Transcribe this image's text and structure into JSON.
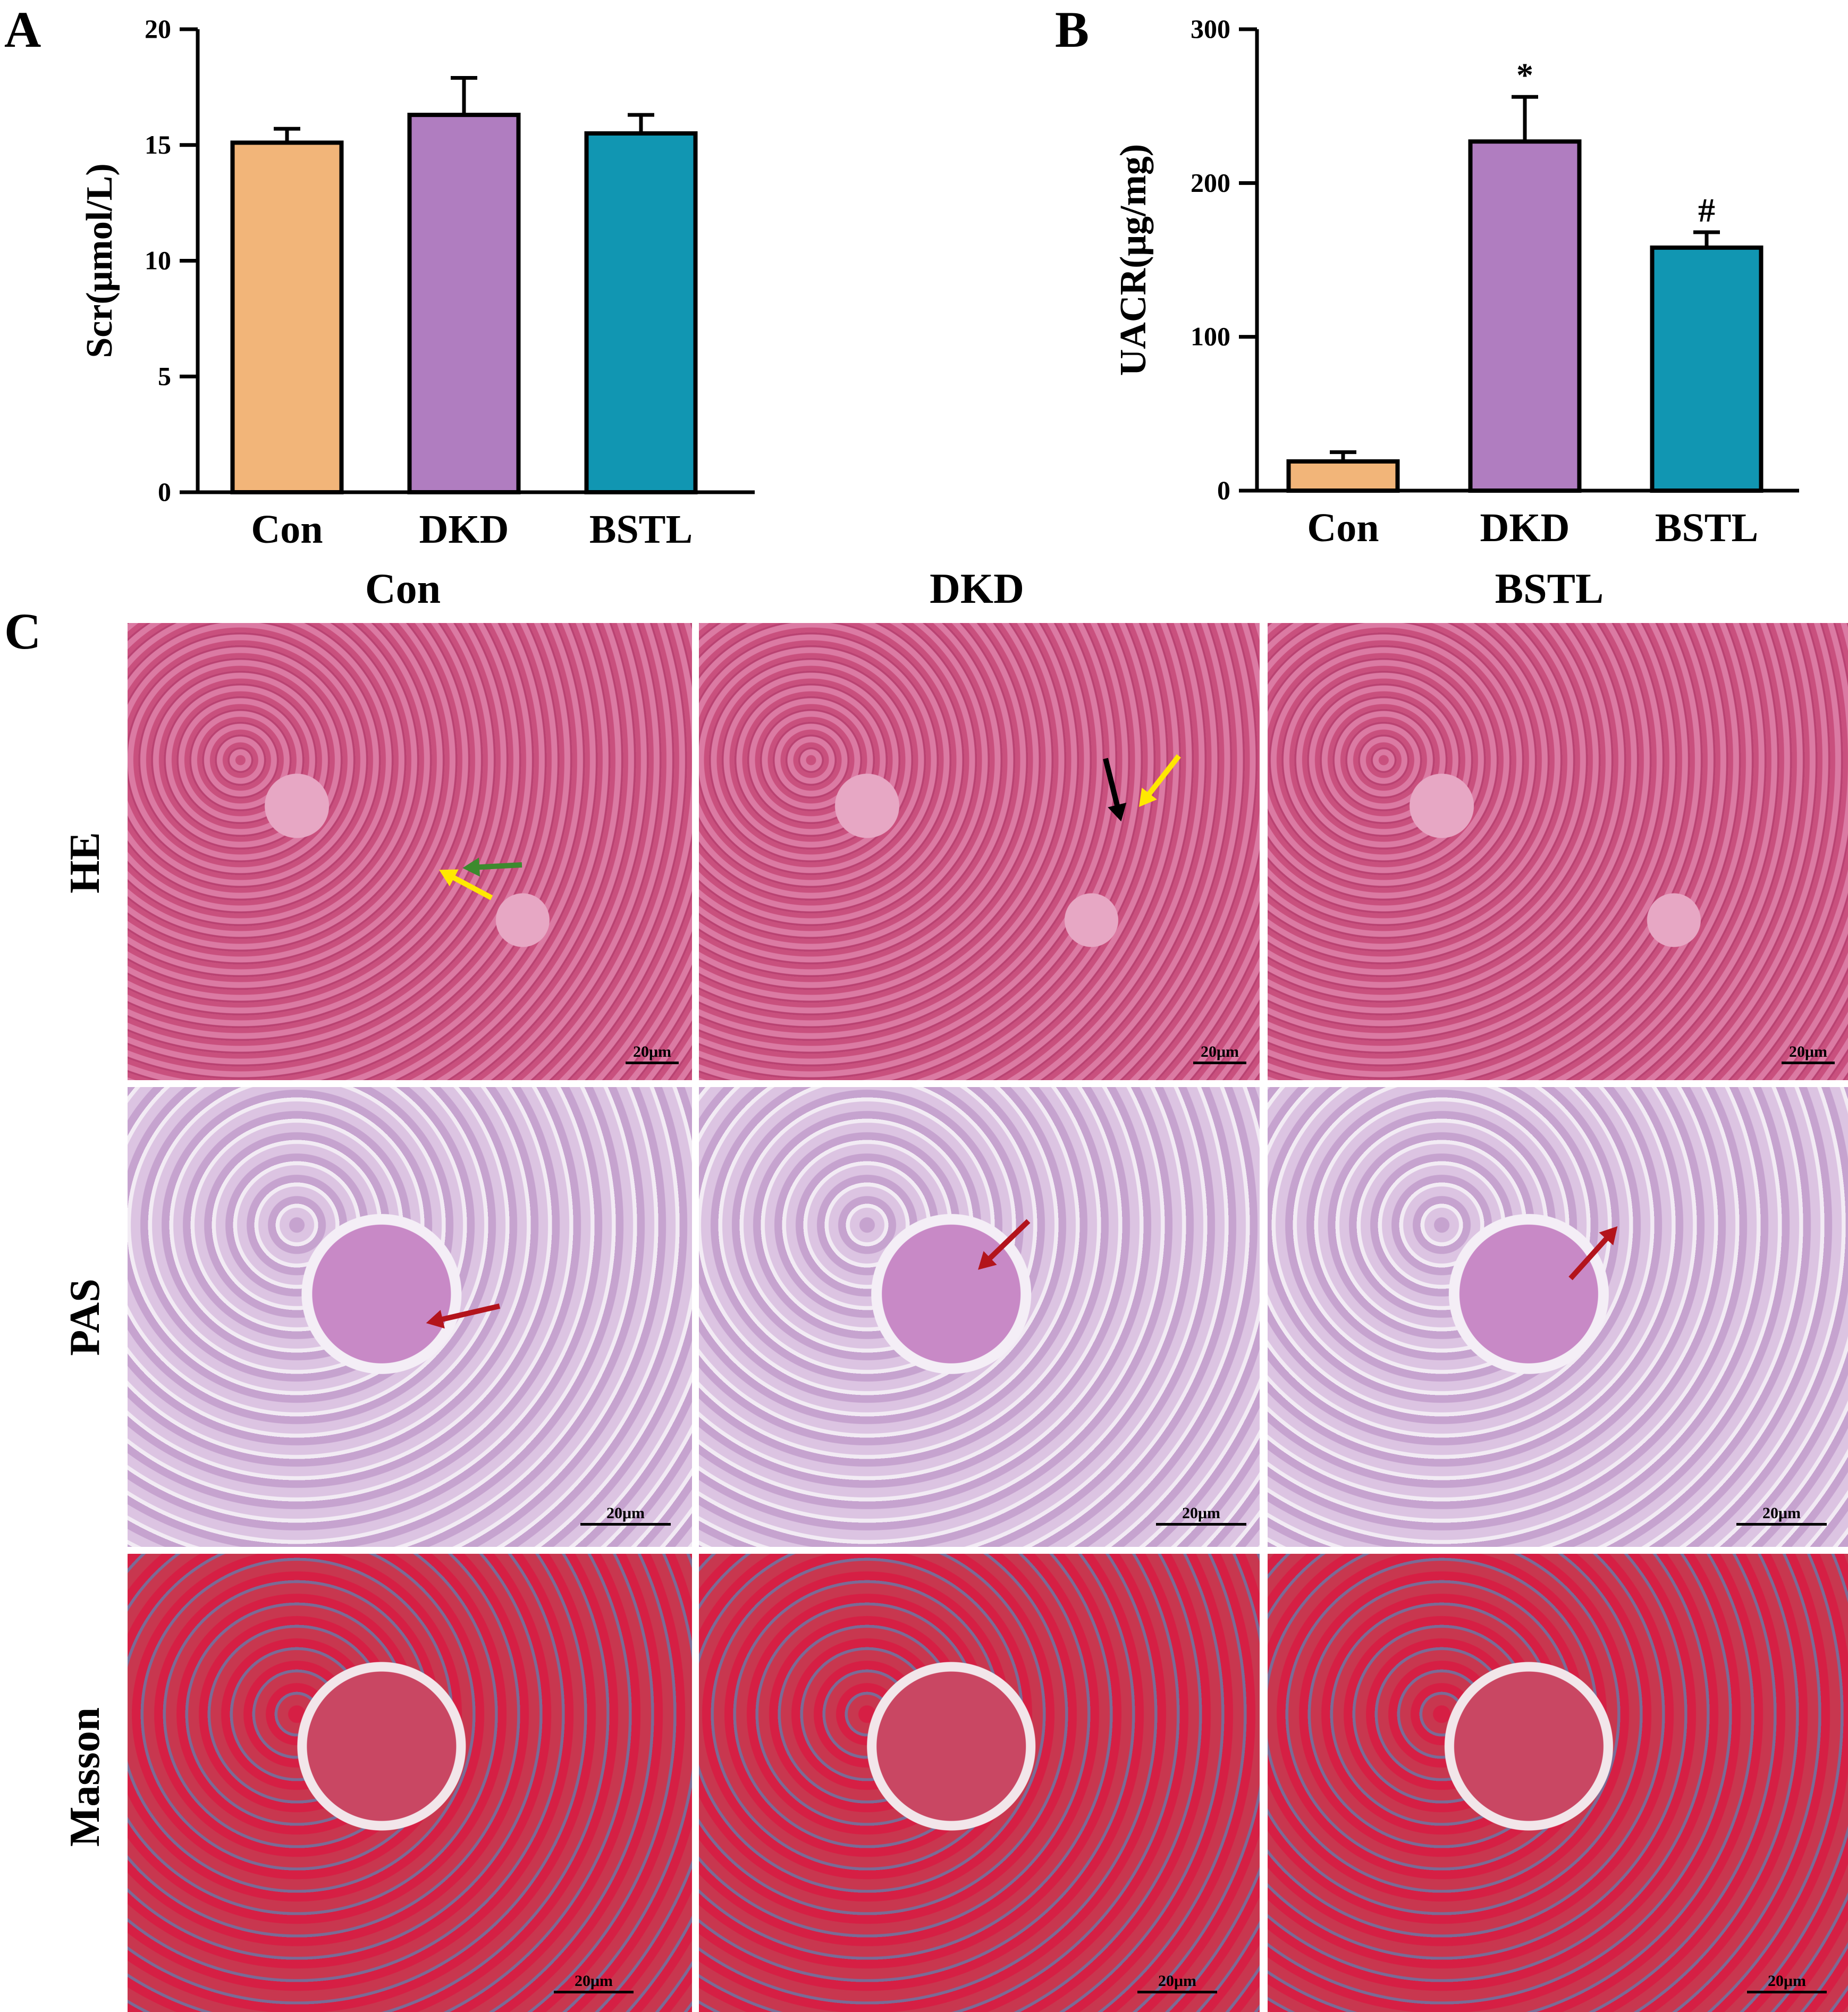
{
  "panel_labels": {
    "a": "A",
    "b": "B",
    "c": "C"
  },
  "chart_data": [
    {
      "type": "bar",
      "panel": "A",
      "categories": [
        "Con",
        "DKD",
        "BSTL"
      ],
      "values": [
        15.1,
        16.3,
        15.5
      ],
      "errors": [
        0.6,
        1.6,
        0.8
      ],
      "colors": [
        "#f2b579",
        "#b07dc0",
        "#1196b2"
      ],
      "ylabel": "Scr(μmol/L)",
      "ylim": [
        0,
        20
      ],
      "yticks": [
        0,
        5,
        10,
        15,
        20
      ],
      "significance": [
        "",
        "",
        ""
      ]
    },
    {
      "type": "bar",
      "panel": "B",
      "categories": [
        "Con",
        "DKD",
        "BSTL"
      ],
      "values": [
        19,
        227,
        158
      ],
      "errors": [
        6,
        29,
        10
      ],
      "colors": [
        "#f2b579",
        "#b07dc0",
        "#1196b2"
      ],
      "ylabel": "UACR(μg/mg)",
      "ylim": [
        0,
        300
      ],
      "yticks": [
        0,
        100,
        200,
        300
      ],
      "significance": [
        "",
        "*",
        "#"
      ]
    }
  ],
  "micrographs": {
    "columns": [
      "Con",
      "DKD",
      "BSTL"
    ],
    "rows": [
      "HE",
      "PAS",
      "Masson"
    ],
    "scale_label": "20μm",
    "arrow_colors": {
      "yellow": "#ffe800",
      "green": "#3c8a2e",
      "black": "#000000",
      "red": "#b3141c"
    }
  }
}
